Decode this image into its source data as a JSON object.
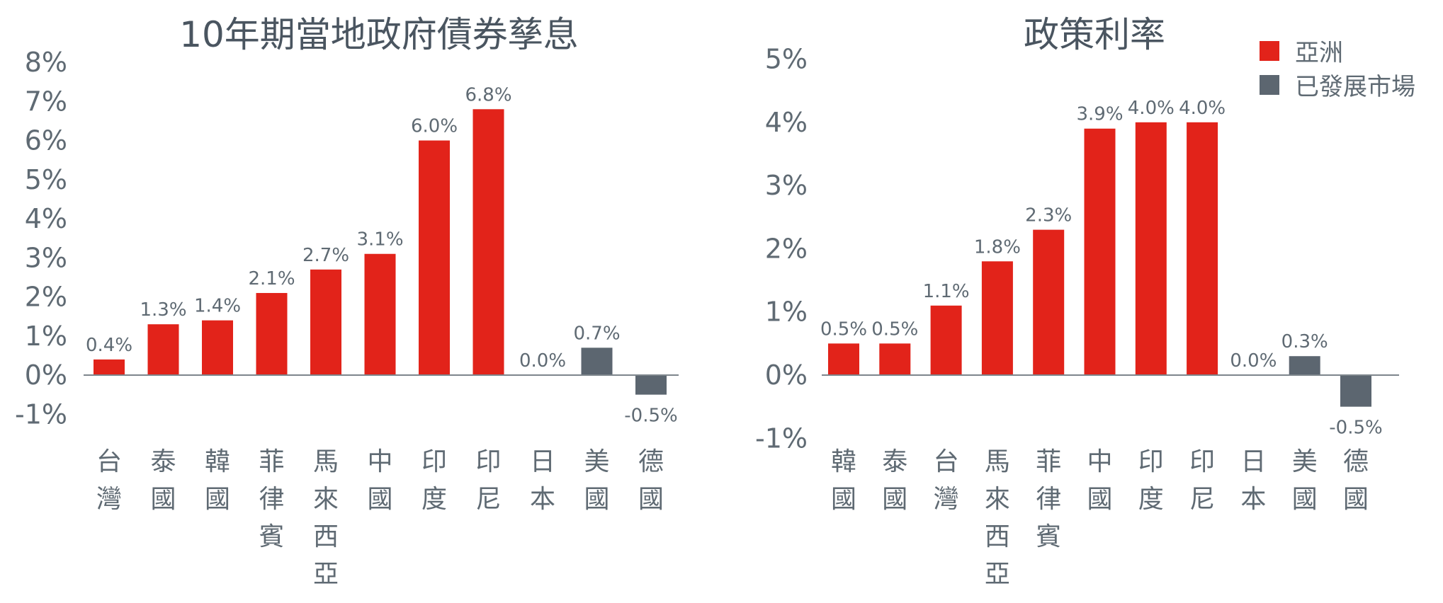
{
  "colors": {
    "asia": "#e2231a",
    "developed": "#5c6670"
  },
  "legend": [
    {
      "label": "亞洲",
      "color": "#e2231a"
    },
    {
      "label": "已發展市場",
      "color": "#5c6670"
    }
  ],
  "chart_data": [
    {
      "type": "bar",
      "title": "10年期當地政府債券孳息",
      "categories": [
        "台灣",
        "泰國",
        "韓國",
        "菲律賓",
        "馬來西亞",
        "中國",
        "印度",
        "印尼",
        "日本",
        "美國",
        "德國"
      ],
      "values": [
        0.4,
        1.3,
        1.4,
        2.1,
        2.7,
        3.1,
        6.0,
        6.8,
        0.0,
        0.7,
        -0.5
      ],
      "value_labels": [
        "0.4%",
        "1.3%",
        "1.4%",
        "2.1%",
        "2.7%",
        "3.1%",
        "6.0%",
        "6.8%",
        "0.0%",
        "0.7%",
        "-0.5%"
      ],
      "groups": [
        "asia",
        "asia",
        "asia",
        "asia",
        "asia",
        "asia",
        "asia",
        "asia",
        "developed",
        "developed",
        "developed"
      ],
      "ylim": [
        -1,
        8
      ],
      "yticks": [
        "-1%",
        "0%",
        "1%",
        "2%",
        "3%",
        "4%",
        "5%",
        "6%",
        "7%",
        "8%"
      ],
      "grid": false
    },
    {
      "type": "bar",
      "title": "政策利率",
      "categories": [
        "韓國",
        "泰國",
        "台灣",
        "馬來西亞",
        "菲律賓",
        "中國",
        "印度",
        "印尼",
        "日本",
        "美國",
        "德國"
      ],
      "values": [
        0.5,
        0.5,
        1.1,
        1.8,
        2.3,
        3.9,
        4.0,
        4.0,
        0.0,
        0.3,
        -0.5
      ],
      "value_labels": [
        "0.5%",
        "0.5%",
        "1.1%",
        "1.8%",
        "2.3%",
        "3.9%",
        "4.0%",
        "4.0%",
        "0.0%",
        "0.3%",
        "-0.5%"
      ],
      "groups": [
        "asia",
        "asia",
        "asia",
        "asia",
        "asia",
        "asia",
        "asia",
        "asia",
        "developed",
        "developed",
        "developed"
      ],
      "ylim": [
        -1,
        5
      ],
      "yticks": [
        "-1%",
        "0%",
        "1%",
        "2%",
        "3%",
        "4%",
        "5%"
      ],
      "grid": false,
      "legend_position": "top-right"
    }
  ]
}
